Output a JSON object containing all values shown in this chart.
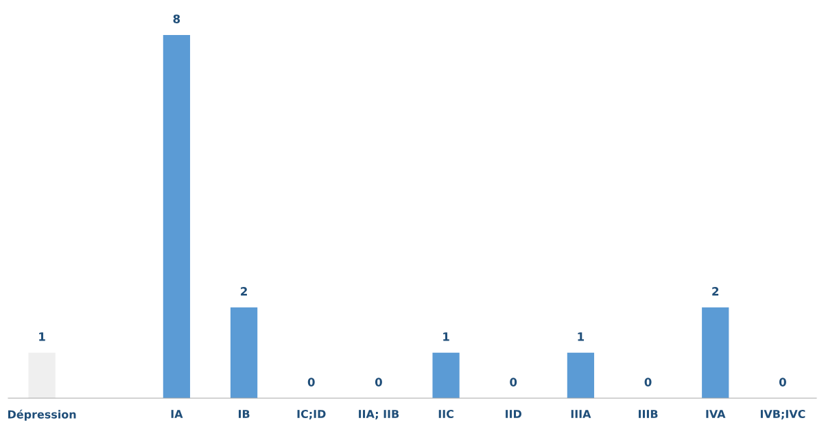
{
  "chart_data": {
    "type": "bar",
    "categories": [
      "Dépression",
      null,
      "IA",
      "IB",
      "IC;ID",
      "IIA; IIB",
      "IIC",
      "IID",
      "IIIA",
      "IIIB",
      "IVA",
      "IVB;IVC"
    ],
    "values": [
      1,
      null,
      8,
      2,
      0,
      0,
      1,
      0,
      1,
      0,
      2,
      0
    ],
    "colors": [
      "#efefef",
      null,
      "#5b9bd5",
      "#5b9bd5",
      "#5b9bd5",
      "#5b9bd5",
      "#5b9bd5",
      "#5b9bd5",
      "#5b9bd5",
      "#5b9bd5",
      "#5b9bd5",
      "#5b9bd5"
    ],
    "data_labels": true,
    "grid": false,
    "legend": false
  }
}
